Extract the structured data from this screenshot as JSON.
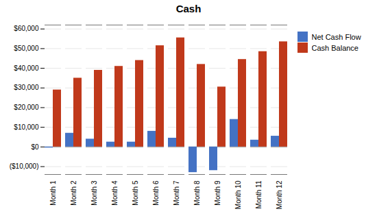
{
  "chart_data": {
    "type": "bar",
    "title": "Cash",
    "categories": [
      "Month 1",
      "Month 2",
      "Month 3",
      "Month 4",
      "Month 5",
      "Month 6",
      "Month 7",
      "Month 8",
      "Month 9",
      "Month 10",
      "Month 11",
      "Month 12"
    ],
    "series": [
      {
        "name": "Net Cash Flow",
        "color": "#4472C4",
        "values": [
          -500,
          7000,
          4000,
          2500,
          2500,
          8000,
          4500,
          -13000,
          -12000,
          14000,
          3500,
          5500
        ]
      },
      {
        "name": "Cash Balance",
        "color": "#C0391B",
        "values": [
          29000,
          35000,
          39000,
          41000,
          44000,
          51500,
          55500,
          42000,
          30500,
          44500,
          48500,
          53500
        ]
      }
    ],
    "ylim": [
      -14000,
      62000
    ],
    "yticks": [
      {
        "value": -10000,
        "label": "($10,000)"
      },
      {
        "value": 0,
        "label": "$0"
      },
      {
        "value": 10000,
        "label": "$10,000"
      },
      {
        "value": 20000,
        "label": "$20,000"
      },
      {
        "value": 30000,
        "label": "$30,000"
      },
      {
        "value": 40000,
        "label": "$40,000"
      },
      {
        "value": 50000,
        "label": "$50,000"
      },
      {
        "value": 60000,
        "label": "$60,000"
      }
    ],
    "grid": true,
    "legend": "right"
  }
}
